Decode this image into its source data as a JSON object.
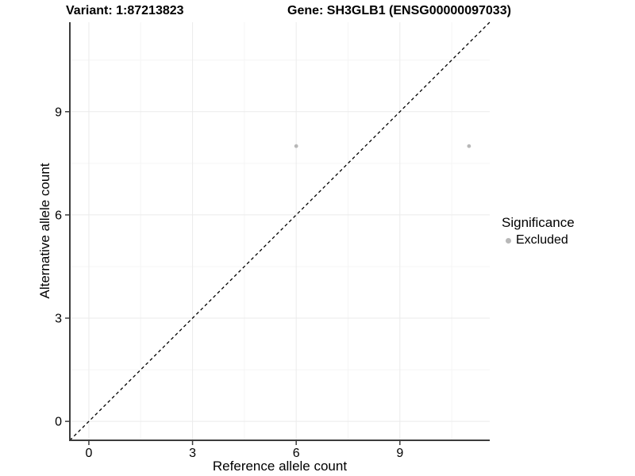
{
  "header": {
    "variant_title": "Variant: 1:87213823",
    "gene_title": "Gene: SH3GLB1 (ENSG00000097033)"
  },
  "axes": {
    "x_label": "Reference allele count",
    "y_label": "Alternative allele count"
  },
  "legend": {
    "title": "Significance",
    "items": [
      {
        "label": "Excluded",
        "color": "#b8b8b8"
      }
    ]
  },
  "chart_data": {
    "type": "scatter",
    "title": "Variant: 1:87213823   Gene: SH3GLB1 (ENSG00000097033)",
    "xlabel": "Reference allele count",
    "ylabel": "Alternative allele count",
    "xlim": [
      -0.55,
      11.6
    ],
    "ylim": [
      -0.55,
      11.6
    ],
    "x_ticks": [
      0,
      3,
      6,
      9
    ],
    "y_ticks": [
      0,
      3,
      6,
      9
    ],
    "x_minor_ticks": [
      1.5,
      4.5,
      7.5,
      10.5
    ],
    "y_minor_ticks": [
      1.5,
      4.5,
      7.5,
      10.5
    ],
    "grid": "major+minor",
    "legend_position": "right",
    "series": [
      {
        "name": "Excluded",
        "color": "#b8b8b8",
        "marker": "circle",
        "points": [
          [
            6,
            8
          ],
          [
            11,
            8
          ]
        ]
      }
    ],
    "annotations": [
      {
        "type": "reference-line",
        "label": "y = x",
        "style": "dashed",
        "color": "#000000"
      }
    ]
  },
  "style": {
    "background_color": "#ffffff",
    "text_color": "#000000",
    "axis_line_color": "#3c3c3c",
    "grid_major_color": "#ebebeb",
    "grid_minor_color": "#f5f5f5",
    "point_color": "#b8b8b8",
    "dashed_line_color": "#000000"
  }
}
